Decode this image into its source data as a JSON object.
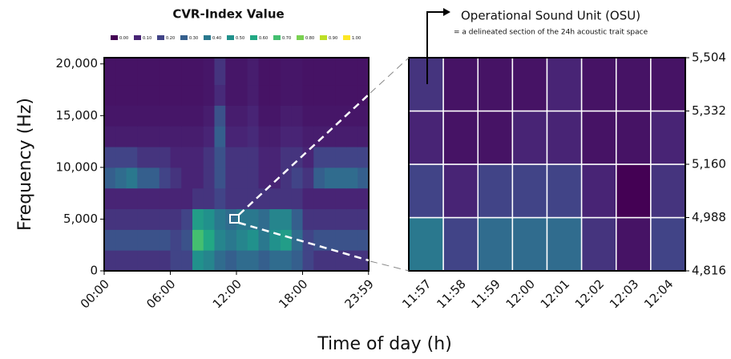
{
  "chart_data": [
    {
      "type": "heatmap",
      "xlabel": "Time of day (h)",
      "ylabel": "Frequency (Hz)",
      "xlim": [
        0,
        24
      ],
      "xticks": [
        {
          "value": 0,
          "label": "00:00"
        },
        {
          "value": 6,
          "label": "06:00"
        },
        {
          "value": 12,
          "label": "12:00"
        },
        {
          "value": 18,
          "label": "18:00"
        },
        {
          "value": 23.983,
          "label": "23:59"
        }
      ],
      "ylim": [
        0,
        20600
      ],
      "yticks": [
        0,
        {
          "value": 5000,
          "label": "5,000"
        },
        {
          "value": 10000,
          "label": "10,000"
        },
        {
          "value": 15000,
          "label": "15,000"
        },
        {
          "value": 20000,
          "label": "20,000"
        }
      ],
      "x_bins": [
        0,
        1,
        2,
        3,
        4,
        5,
        6,
        7,
        8,
        9,
        10,
        11,
        12,
        13,
        14,
        15,
        16,
        17,
        18,
        19,
        20,
        21,
        22,
        23,
        24
      ],
      "y_bins": [
        0,
        2000,
        4000,
        6000,
        8000,
        10000,
        12000,
        14000,
        16000,
        18000,
        20600
      ],
      "z": [
        [
          0.15,
          0.15,
          0.15,
          0.15,
          0.15,
          0.15,
          0.2,
          0.2,
          0.5,
          0.45,
          0.35,
          0.3,
          0.35,
          0.35,
          0.3,
          0.35,
          0.35,
          0.3,
          0.2,
          0.15,
          0.15,
          0.15,
          0.15,
          0.15
        ],
        [
          0.25,
          0.25,
          0.25,
          0.25,
          0.25,
          0.25,
          0.2,
          0.25,
          0.7,
          0.6,
          0.45,
          0.4,
          0.45,
          0.5,
          0.4,
          0.5,
          0.55,
          0.35,
          0.2,
          0.25,
          0.25,
          0.25,
          0.25,
          0.25
        ],
        [
          0.15,
          0.15,
          0.15,
          0.15,
          0.15,
          0.15,
          0.15,
          0.2,
          0.55,
          0.5,
          0.4,
          0.35,
          0.4,
          0.4,
          0.35,
          0.45,
          0.45,
          0.3,
          0.15,
          0.15,
          0.15,
          0.15,
          0.15,
          0.15
        ],
        [
          0.1,
          0.1,
          0.1,
          0.1,
          0.1,
          0.1,
          0.1,
          0.1,
          0.15,
          0.15,
          0.2,
          0.15,
          0.15,
          0.15,
          0.15,
          0.15,
          0.15,
          0.15,
          0.1,
          0.1,
          0.1,
          0.1,
          0.1,
          0.1
        ],
        [
          0.3,
          0.35,
          0.4,
          0.3,
          0.3,
          0.2,
          0.15,
          0.1,
          0.1,
          0.15,
          0.25,
          0.15,
          0.15,
          0.15,
          0.1,
          0.1,
          0.15,
          0.2,
          0.15,
          0.3,
          0.35,
          0.35,
          0.35,
          0.3
        ],
        [
          0.2,
          0.2,
          0.2,
          0.15,
          0.15,
          0.15,
          0.1,
          0.1,
          0.1,
          0.15,
          0.25,
          0.15,
          0.15,
          0.15,
          0.1,
          0.1,
          0.15,
          0.15,
          0.1,
          0.2,
          0.2,
          0.2,
          0.2,
          0.2
        ],
        [
          0.08,
          0.08,
          0.08,
          0.08,
          0.08,
          0.08,
          0.08,
          0.08,
          0.08,
          0.1,
          0.3,
          0.1,
          0.1,
          0.12,
          0.08,
          0.08,
          0.1,
          0.1,
          0.08,
          0.08,
          0.08,
          0.08,
          0.08,
          0.08
        ],
        [
          0.06,
          0.06,
          0.06,
          0.06,
          0.06,
          0.06,
          0.06,
          0.06,
          0.06,
          0.08,
          0.25,
          0.08,
          0.08,
          0.1,
          0.06,
          0.06,
          0.08,
          0.08,
          0.06,
          0.06,
          0.06,
          0.06,
          0.06,
          0.06
        ],
        [
          0.05,
          0.05,
          0.05,
          0.05,
          0.05,
          0.05,
          0.05,
          0.05,
          0.05,
          0.06,
          0.12,
          0.06,
          0.06,
          0.08,
          0.05,
          0.05,
          0.06,
          0.06,
          0.05,
          0.05,
          0.05,
          0.05,
          0.05,
          0.05
        ],
        [
          0.05,
          0.05,
          0.05,
          0.05,
          0.05,
          0.05,
          0.05,
          0.05,
          0.05,
          0.06,
          0.15,
          0.06,
          0.06,
          0.08,
          0.05,
          0.05,
          0.06,
          0.06,
          0.05,
          0.05,
          0.05,
          0.05,
          0.05,
          0.05
        ]
      ],
      "colorscale": {
        "title": "CVR-Index Value",
        "ticks": [
          {
            "value": 0,
            "label": "0.00"
          },
          {
            "value": 0.1,
            "label": "0.10"
          },
          {
            "value": 0.2,
            "label": "0.20"
          },
          {
            "value": 0.3,
            "label": "0.30"
          },
          {
            "value": 0.4,
            "label": "0.40"
          },
          {
            "value": 0.5,
            "label": "0.50"
          },
          {
            "value": 0.6,
            "label": "0.60"
          },
          {
            "value": 0.7,
            "label": "0.70"
          },
          {
            "value": 0.8,
            "label": "0.80"
          },
          {
            "value": 0.9,
            "label": "0.90"
          },
          {
            "value": 1,
            "label": "1.00"
          }
        ],
        "colors": [
          "#440154",
          "#482475",
          "#414487",
          "#355f8d",
          "#2a788e",
          "#21918c",
          "#22a884",
          "#44bf70",
          "#7ad151",
          "#bddf26",
          "#fde725"
        ]
      }
    },
    {
      "type": "heatmap",
      "annotation": "Operational Sound Unit (OSU)",
      "subannotation": "= a delineated section of the 24h acoustic trait space",
      "categories": [
        "11:57",
        "11:58",
        "11:59",
        "12:00",
        "12:01",
        "12:02",
        "12:03",
        "12:04"
      ],
      "ylim": [
        4816,
        5504
      ],
      "yticks": [
        {
          "value": 4816,
          "label": "4,816"
        },
        {
          "value": 4988,
          "label": "4,988"
        },
        {
          "value": 5160,
          "label": "5,160"
        },
        {
          "value": 5332,
          "label": "5,332"
        },
        {
          "value": 5504,
          "label": "5,504"
        }
      ],
      "grid": true,
      "z": [
        [
          0.4,
          0.2,
          0.35,
          0.35,
          0.35,
          0.15,
          0.05,
          0.2
        ],
        [
          0.2,
          0.1,
          0.2,
          0.2,
          0.2,
          0.1,
          0.0,
          0.15
        ],
        [
          0.1,
          0.05,
          0.05,
          0.1,
          0.1,
          0.05,
          0.05,
          0.1
        ],
        [
          0.15,
          0.05,
          0.05,
          0.05,
          0.1,
          0.05,
          0.05,
          0.05
        ]
      ]
    }
  ]
}
